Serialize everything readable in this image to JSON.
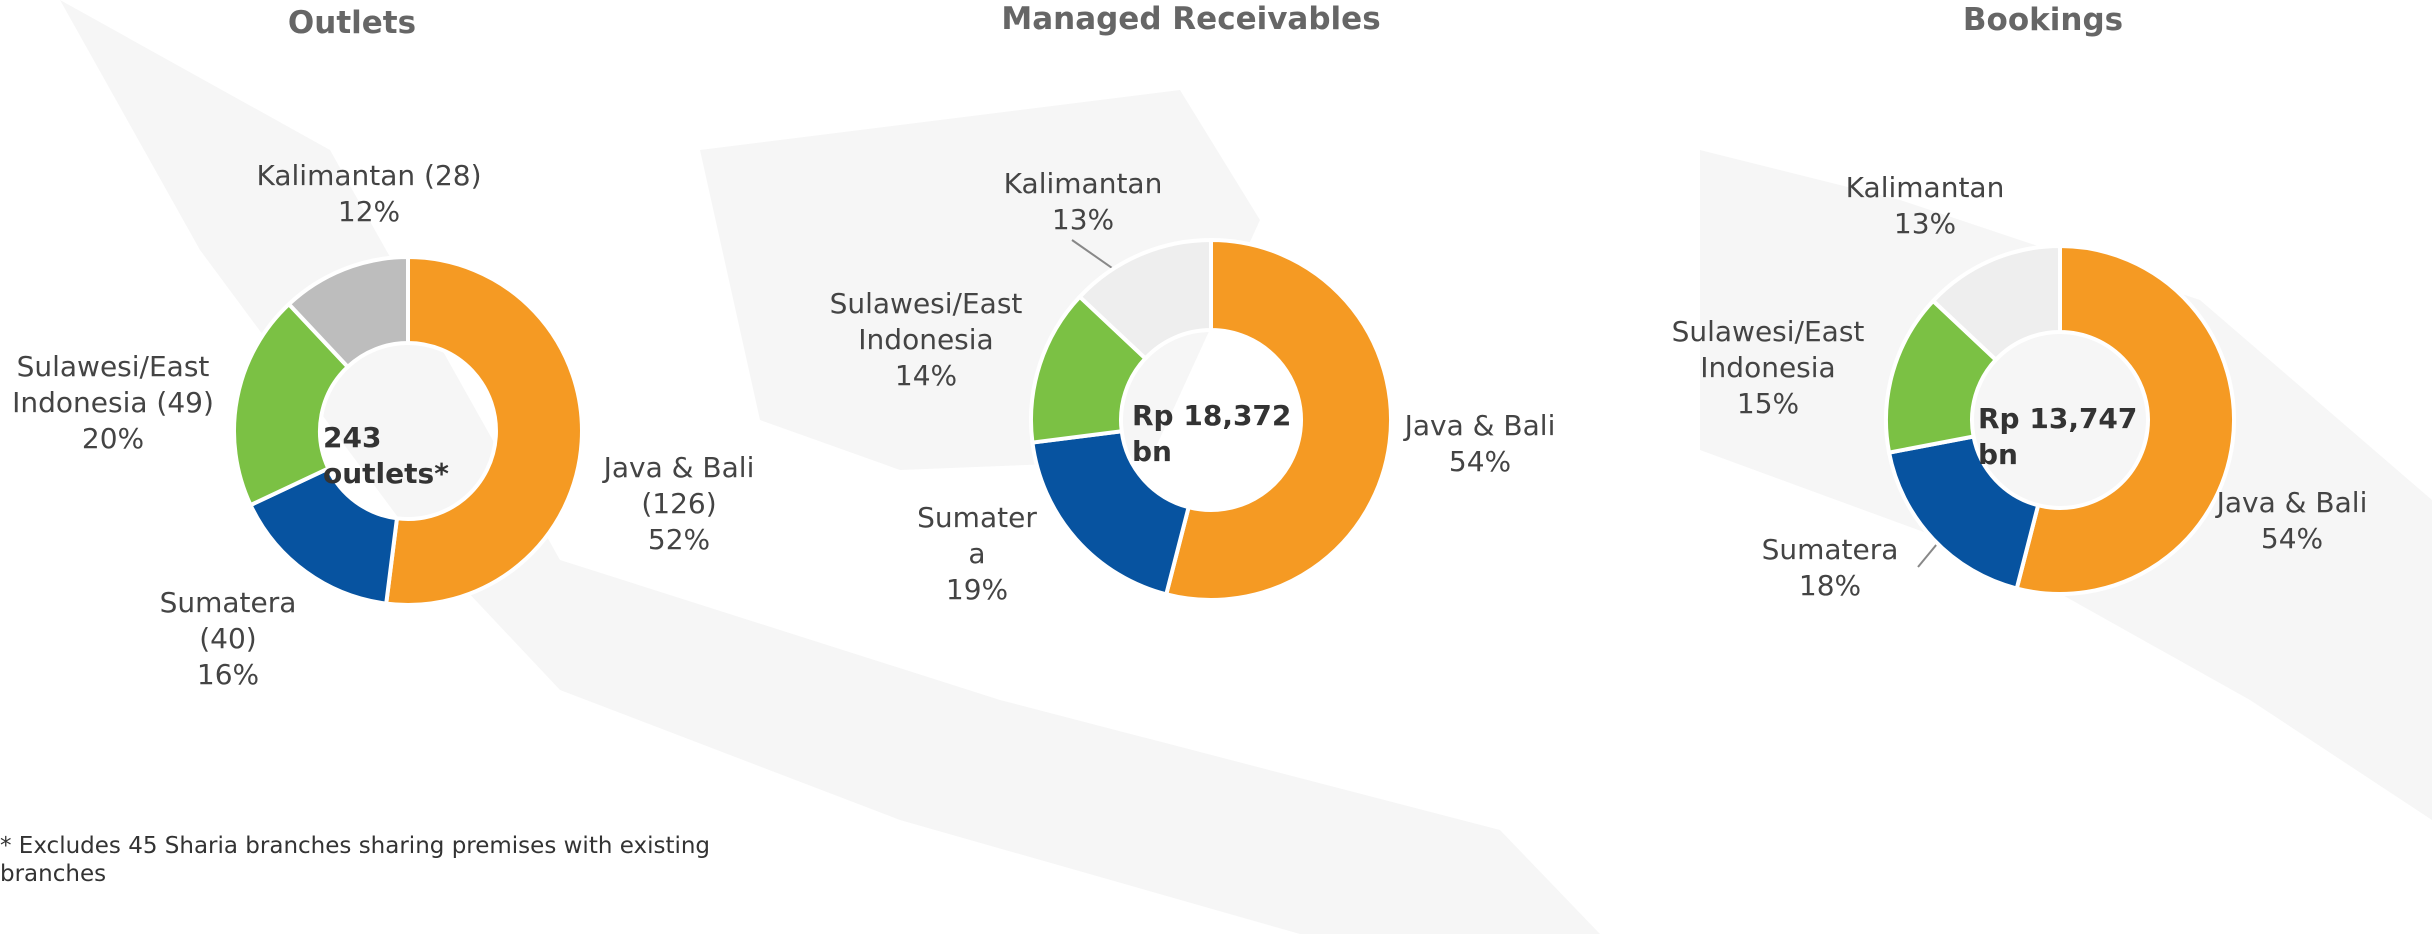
{
  "chart_data": [
    {
      "type": "pie",
      "donut": true,
      "title": "Outlets",
      "center_label": "243 outlets*",
      "categories": [
        "Java & Bali (126)",
        "Sumatera (40)",
        "Sulawesi/East Indonesia (49)",
        "Kalimantan (28)"
      ],
      "values": [
        52,
        16,
        20,
        12
      ],
      "value_labels": [
        "52%",
        "16%",
        "20%",
        "12%"
      ],
      "colors": [
        "#f59a23",
        "#0753a0",
        "#7bc144",
        "#bdbdbd"
      ]
    },
    {
      "type": "pie",
      "donut": true,
      "title": "Managed Receivables",
      "center_label": "Rp 18,372 bn",
      "categories": [
        "Java & Bali",
        "Sumatera",
        "Sulawesi/East Indonesia",
        "Kalimantan"
      ],
      "values": [
        54,
        19,
        14,
        13
      ],
      "value_labels": [
        "54%",
        "19%",
        "14%",
        "13%"
      ],
      "colors": [
        "#f59a23",
        "#0753a0",
        "#7bc144",
        "#eeeeee"
      ]
    },
    {
      "type": "pie",
      "donut": true,
      "title": "Bookings",
      "center_label": "Rp 13,747 bn",
      "categories": [
        "Java & Bali",
        "Sumatera",
        "Sulawesi/East Indonesia",
        "Kalimantan"
      ],
      "values": [
        54,
        18,
        15,
        13
      ],
      "value_labels": [
        "54%",
        "18%",
        "15%",
        "13%"
      ],
      "colors": [
        "#f59a23",
        "#0753a0",
        "#7bc144",
        "#eeeeee"
      ]
    }
  ],
  "footnote": "* Excludes 45 Sharia branches sharing premises with existing branches"
}
